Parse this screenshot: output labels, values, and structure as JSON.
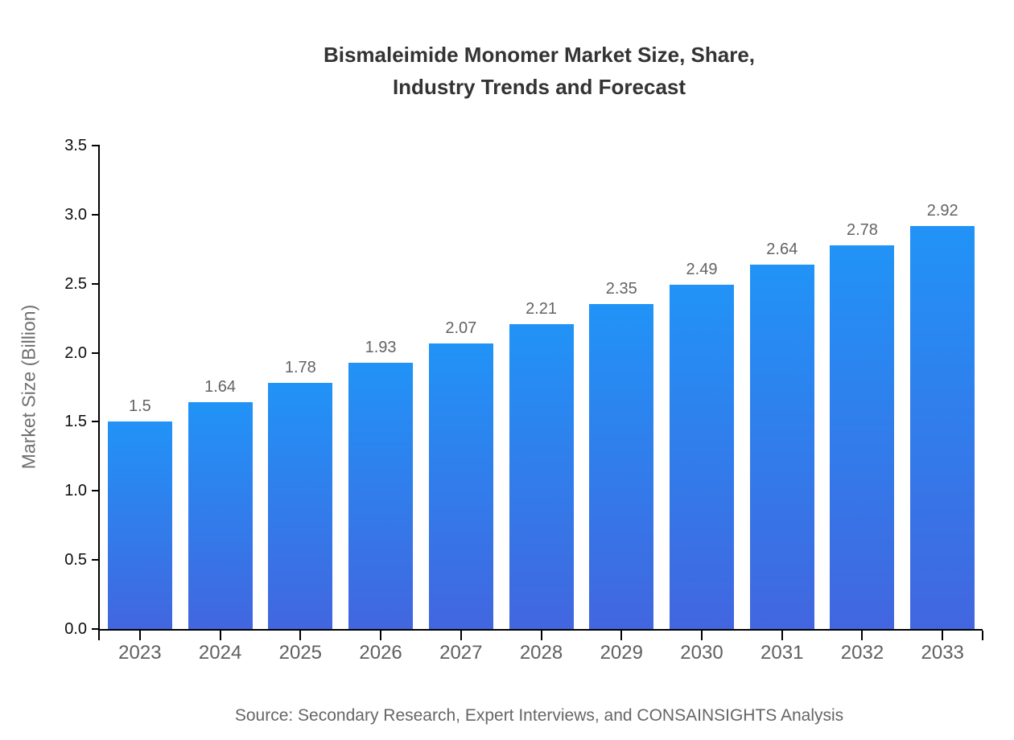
{
  "title": {
    "line1": "Bismaleimide Monomer Market Size, Share,",
    "line2": "Industry Trends and Forecast"
  },
  "source": "Source: Secondary Research, Expert Interviews, and CONSAINSIGHTS Analysis",
  "chart_data": {
    "type": "bar",
    "title": "Bismaleimide Monomer Market Size, Share, Industry Trends and Forecast",
    "categories": [
      "2023",
      "2024",
      "2025",
      "2026",
      "2027",
      "2028",
      "2029",
      "2030",
      "2031",
      "2032",
      "2033"
    ],
    "values": [
      1.5,
      1.64,
      1.78,
      1.93,
      2.07,
      2.21,
      2.35,
      2.49,
      2.64,
      2.78,
      2.92
    ],
    "value_labels": [
      "1.5",
      "1.64",
      "1.78",
      "1.93",
      "2.07",
      "2.21",
      "2.35",
      "2.49",
      "2.64",
      "2.78",
      "2.92"
    ],
    "xlabel": "",
    "ylabel": "Market Size (Billion)",
    "ylim": [
      0,
      3.5
    ],
    "ytick_labels": [
      "0.0",
      "0.5",
      "1.0",
      "1.5",
      "2.0",
      "2.5",
      "3.0",
      "3.5"
    ],
    "ytick_values": [
      0,
      0.5,
      1.0,
      1.5,
      2.0,
      2.5,
      3.0,
      3.5
    ],
    "grid": false,
    "legend": "none"
  },
  "colors": {
    "background": "#ffffff",
    "title_text": "#333333",
    "axis_line": "#000000",
    "ytick_text": "#0d0d0d",
    "xtick_text": "#606060",
    "value_label_text": "#636363",
    "axis_title_text": "#6f6f6f",
    "source_text": "#666666",
    "bar_gradient_top": "#2193f7",
    "bar_gradient_bottom": "#4266df"
  }
}
